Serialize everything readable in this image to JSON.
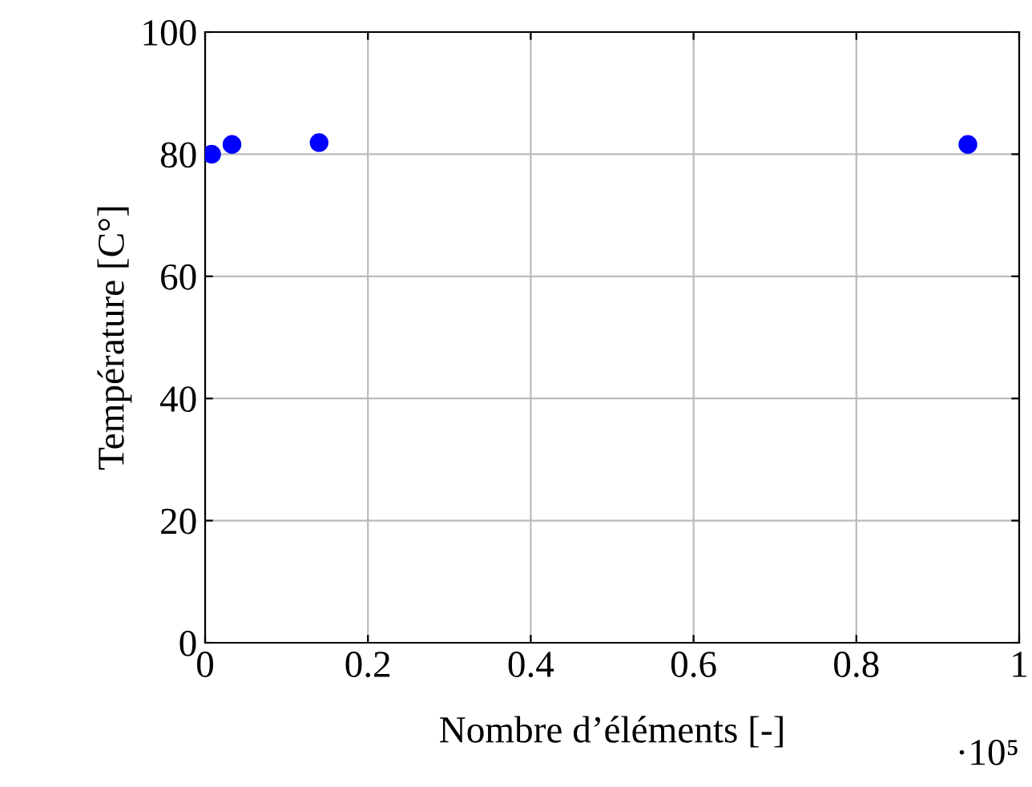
{
  "chart_data": {
    "type": "scatter",
    "xlabel": "Nombre d’éléments [-]",
    "ylabel": "Température [C°]",
    "x": [
      0.008,
      0.033,
      0.14,
      0.937
    ],
    "series": [
      {
        "color": "#0000ff",
        "values": [
          80.0,
          81.6,
          81.9,
          81.6
        ]
      }
    ],
    "xlim": [
      0,
      1
    ],
    "xticks": [
      0,
      0.2,
      0.4,
      0.6,
      0.8,
      1
    ],
    "ylim": [
      0,
      100
    ],
    "yticks": [
      0,
      20,
      40,
      60,
      80,
      100
    ],
    "grid": true,
    "marker": "circle",
    "annotations": [
      "·10⁵"
    ]
  }
}
